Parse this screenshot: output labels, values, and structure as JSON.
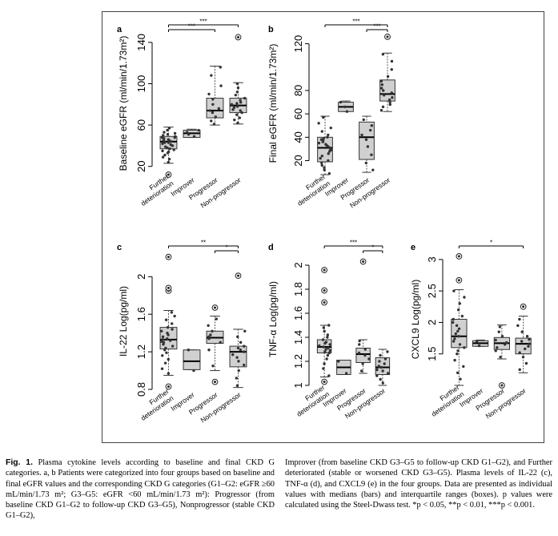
{
  "figure": {
    "border_color": "#444444",
    "box_fill": "#d0d0d0",
    "point_color": "#333333",
    "outlier_style": "circled-dot"
  },
  "chart_data": [
    {
      "panel": "a",
      "type": "box",
      "ylabel": "Baseline eGFR (ml/min/1.73m²)",
      "ylim": [
        12,
        150
      ],
      "yticks": [
        20,
        60,
        100,
        140
      ],
      "categories": [
        "Further deterioration",
        "Improver",
        "Progressor",
        "Non-progressor"
      ],
      "boxes": [
        {
          "q1": 37,
          "median": 44,
          "q3": 49,
          "lo": 23,
          "hi": 58,
          "outliers": [
            12
          ]
        },
        {
          "q1": 48,
          "median": 52,
          "q3": 55,
          "lo": 48,
          "hi": 56,
          "outliers": []
        },
        {
          "q1": 67,
          "median": 74,
          "q3": 86,
          "lo": 60,
          "hi": 117,
          "outliers": []
        },
        {
          "q1": 72,
          "median": 79,
          "q3": 86,
          "lo": 61,
          "hi": 101,
          "outliers": [
            145
          ]
        }
      ],
      "points": [
        [
          24,
          27,
          29,
          31,
          33,
          34,
          35,
          36,
          37,
          38,
          39,
          40,
          41,
          42,
          43,
          43,
          44,
          45,
          45,
          46,
          47,
          48,
          48,
          49,
          50,
          51,
          52,
          53,
          55,
          57
        ],
        [
          49,
          51,
          53,
          55
        ],
        [
          61,
          64,
          68,
          72,
          74,
          76,
          80,
          85,
          90,
          98,
          108,
          116
        ],
        [
          62,
          65,
          67,
          70,
          72,
          74,
          75,
          77,
          78,
          79,
          80,
          81,
          82,
          84,
          86,
          89,
          92,
          96,
          100
        ]
      ],
      "significance": [
        {
          "from": 0,
          "to": 3,
          "label": "***"
        },
        {
          "from": 0,
          "to": 2,
          "label": "***"
        }
      ]
    },
    {
      "panel": "b",
      "type": "box",
      "ylabel": "Final eGFR (ml/min/1.73m²)",
      "ylim": [
        8,
        130
      ],
      "yticks": [
        20,
        40,
        60,
        80,
        120
      ],
      "categories": [
        "Further deterioration",
        "Improver",
        "Progressor",
        "Non-progressor"
      ],
      "boxes": [
        {
          "q1": 19,
          "median": 31,
          "q3": 40,
          "lo": 8,
          "hi": 58,
          "outliers": []
        },
        {
          "q1": 62,
          "median": 66,
          "q3": 70,
          "lo": 62,
          "hi": 71,
          "outliers": []
        },
        {
          "q1": 21,
          "median": 40,
          "q3": 53,
          "lo": 10,
          "hi": 58,
          "outliers": []
        },
        {
          "q1": 71,
          "median": 77,
          "q3": 89,
          "lo": 62,
          "hi": 112,
          "outliers": [
            126
          ]
        }
      ],
      "points": [
        [
          9,
          12,
          14,
          16,
          18,
          20,
          22,
          24,
          26,
          28,
          29,
          30,
          31,
          32,
          33,
          34,
          35,
          36,
          37,
          38,
          39,
          40,
          42,
          45,
          48,
          52,
          57
        ],
        [
          62,
          66,
          70
        ],
        [
          12,
          18,
          25,
          32,
          38,
          42,
          46,
          50,
          55
        ],
        [
          63,
          66,
          68,
          70,
          72,
          74,
          76,
          78,
          80,
          82,
          85,
          88,
          92,
          98,
          105,
          111
        ]
      ],
      "significance": [
        {
          "from": 0,
          "to": 3,
          "label": "***"
        },
        {
          "from": 2,
          "to": 3,
          "label": "***"
        }
      ]
    },
    {
      "panel": "c",
      "type": "box",
      "ylabel": "IL-22 Log(pg/ml)",
      "ylim": [
        0.8,
        2.25
      ],
      "yticks": [
        0.8,
        1.2,
        1.6,
        2.0
      ],
      "categories": [
        "Further deterioration",
        "Improver",
        "Progressor",
        "Non-progressor"
      ],
      "boxes": [
        {
          "q1": 1.23,
          "median": 1.33,
          "q3": 1.46,
          "lo": 0.95,
          "hi": 1.64,
          "outliers": [
            0.83,
            1.85,
            1.88,
            2.21
          ]
        },
        {
          "q1": 1.01,
          "median": 1.1,
          "q3": 1.22,
          "lo": 1.01,
          "hi": 1.22,
          "outliers": []
        },
        {
          "q1": 1.29,
          "median": 1.35,
          "q3": 1.42,
          "lo": 1.0,
          "hi": 1.58,
          "outliers": [
            0.88,
            1.67
          ]
        },
        {
          "q1": 1.04,
          "median": 1.2,
          "q3": 1.26,
          "lo": 0.82,
          "hi": 1.44,
          "outliers": [
            2.01
          ]
        }
      ],
      "points": [
        [
          0.97,
          1.02,
          1.08,
          1.12,
          1.16,
          1.19,
          1.22,
          1.24,
          1.26,
          1.28,
          1.3,
          1.31,
          1.32,
          1.33,
          1.34,
          1.36,
          1.38,
          1.4,
          1.42,
          1.44,
          1.46,
          1.5,
          1.54,
          1.58,
          1.62
        ],
        [
          1.0,
          1.22
        ],
        [
          1.05,
          1.22,
          1.3,
          1.34,
          1.36,
          1.38,
          1.42,
          1.48,
          1.55
        ],
        [
          0.84,
          0.92,
          1.0,
          1.06,
          1.1,
          1.14,
          1.17,
          1.2,
          1.22,
          1.24,
          1.26,
          1.3,
          1.36,
          1.42
        ]
      ],
      "significance": [
        {
          "from": 0,
          "to": 3,
          "label": "**"
        },
        {
          "from": 2,
          "to": 3,
          "label": "*"
        }
      ]
    },
    {
      "panel": "d",
      "type": "box",
      "ylabel": "TNF-α Log(pg/ml)",
      "ylim": [
        1.0,
        2.1
      ],
      "yticks": [
        1.0,
        1.2,
        1.4,
        1.6,
        1.8,
        2.0
      ],
      "categories": [
        "Further deterioration",
        "Improver",
        "Progressor",
        "Non-progressor"
      ],
      "boxes": [
        {
          "q1": 1.27,
          "median": 1.32,
          "q3": 1.38,
          "lo": 1.07,
          "hi": 1.5,
          "outliers": [
            1.03,
            1.69,
            1.79,
            1.96
          ]
        },
        {
          "q1": 1.09,
          "median": 1.15,
          "q3": 1.21,
          "lo": 1.09,
          "hi": 1.21,
          "outliers": []
        },
        {
          "q1": 1.19,
          "median": 1.26,
          "q3": 1.31,
          "lo": 1.1,
          "hi": 1.38,
          "outliers": [
            2.03
          ]
        },
        {
          "q1": 1.09,
          "median": 1.15,
          "q3": 1.23,
          "lo": 1.0,
          "hi": 1.3,
          "outliers": []
        }
      ],
      "points": [
        [
          1.08,
          1.14,
          1.18,
          1.22,
          1.25,
          1.27,
          1.28,
          1.29,
          1.3,
          1.31,
          1.32,
          1.33,
          1.34,
          1.35,
          1.36,
          1.38,
          1.4,
          1.42,
          1.45,
          1.48,
          1.5
        ],
        [
          1.1,
          1.2
        ],
        [
          1.12,
          1.18,
          1.22,
          1.25,
          1.27,
          1.3,
          1.34,
          1.37
        ],
        [
          1.02,
          1.05,
          1.08,
          1.1,
          1.12,
          1.13,
          1.15,
          1.16,
          1.18,
          1.2,
          1.22,
          1.25,
          1.28
        ]
      ],
      "significance": [
        {
          "from": 0,
          "to": 3,
          "label": "***"
        },
        {
          "from": 2,
          "to": 3,
          "label": "*"
        }
      ]
    },
    {
      "panel": "e",
      "type": "box",
      "ylabel": "CXCL9 Log(pg/ml)",
      "ylim": [
        1.0,
        3.1
      ],
      "yticks": [
        1.5,
        2.0,
        2.5,
        3.0
      ],
      "categories": [
        "Further deterioration",
        "Improver",
        "Progressor",
        "Non-progressor"
      ],
      "boxes": [
        {
          "q1": 1.6,
          "median": 1.78,
          "q3": 2.05,
          "lo": 1.0,
          "hi": 2.52,
          "outliers": [
            2.67,
            3.05
          ]
        },
        {
          "q1": 1.62,
          "median": 1.67,
          "q3": 1.71,
          "lo": 1.62,
          "hi": 1.72,
          "outliers": []
        },
        {
          "q1": 1.57,
          "median": 1.67,
          "q3": 1.76,
          "lo": 1.42,
          "hi": 1.96,
          "outliers": [
            1.0
          ]
        },
        {
          "q1": 1.5,
          "median": 1.66,
          "q3": 1.75,
          "lo": 1.2,
          "hi": 2.1,
          "outliers": [
            2.25
          ]
        }
      ],
      "points": [
        [
          1.1,
          1.2,
          1.3,
          1.4,
          1.5,
          1.55,
          1.6,
          1.65,
          1.7,
          1.74,
          1.78,
          1.82,
          1.86,
          1.9,
          1.95,
          2.0,
          2.05,
          2.1,
          2.2,
          2.3,
          2.4,
          2.5
        ],
        [
          1.63,
          1.7
        ],
        [
          1.45,
          1.55,
          1.6,
          1.65,
          1.68,
          1.72,
          1.78,
          1.85,
          1.93
        ],
        [
          1.25,
          1.35,
          1.45,
          1.52,
          1.58,
          1.62,
          1.66,
          1.7,
          1.73,
          1.78,
          1.85,
          1.95,
          2.05
        ]
      ],
      "significance": [
        {
          "from": 0,
          "to": 3,
          "label": "*"
        }
      ]
    }
  ],
  "caption": {
    "fig_label": "Fig. 1.",
    "left_text": "Plasma cytokine levels according to baseline and final CKD G categories. a, b Patients were categorized into four groups based on baseline and final eGFR values and the corresponding CKD G categories (G1–G2: eGFR ≥60 mL/min/1.73 m²; G3–G5: eGFR <60 mL/min/1.73 m²): Progressor (from baseline CKD G1–G2 to follow-up CKD G3–G5), Nonprogressor (stable CKD G1–G2),",
    "right_text": "Improver (from baseline CKD G3–G5 to follow-up CKD G1–G2), and Further deteriorated (stable or worsened CKD G3–G5). Plasma levels of IL-22 (c), TNF-α (d), and CXCL9 (e) in the four groups. Data are presented as individual values with medians (bars) and interquartile ranges (boxes). p values were calculated using the Steel-Dwass test. *p < 0.05, **p < 0.01, ***p < 0.001."
  }
}
